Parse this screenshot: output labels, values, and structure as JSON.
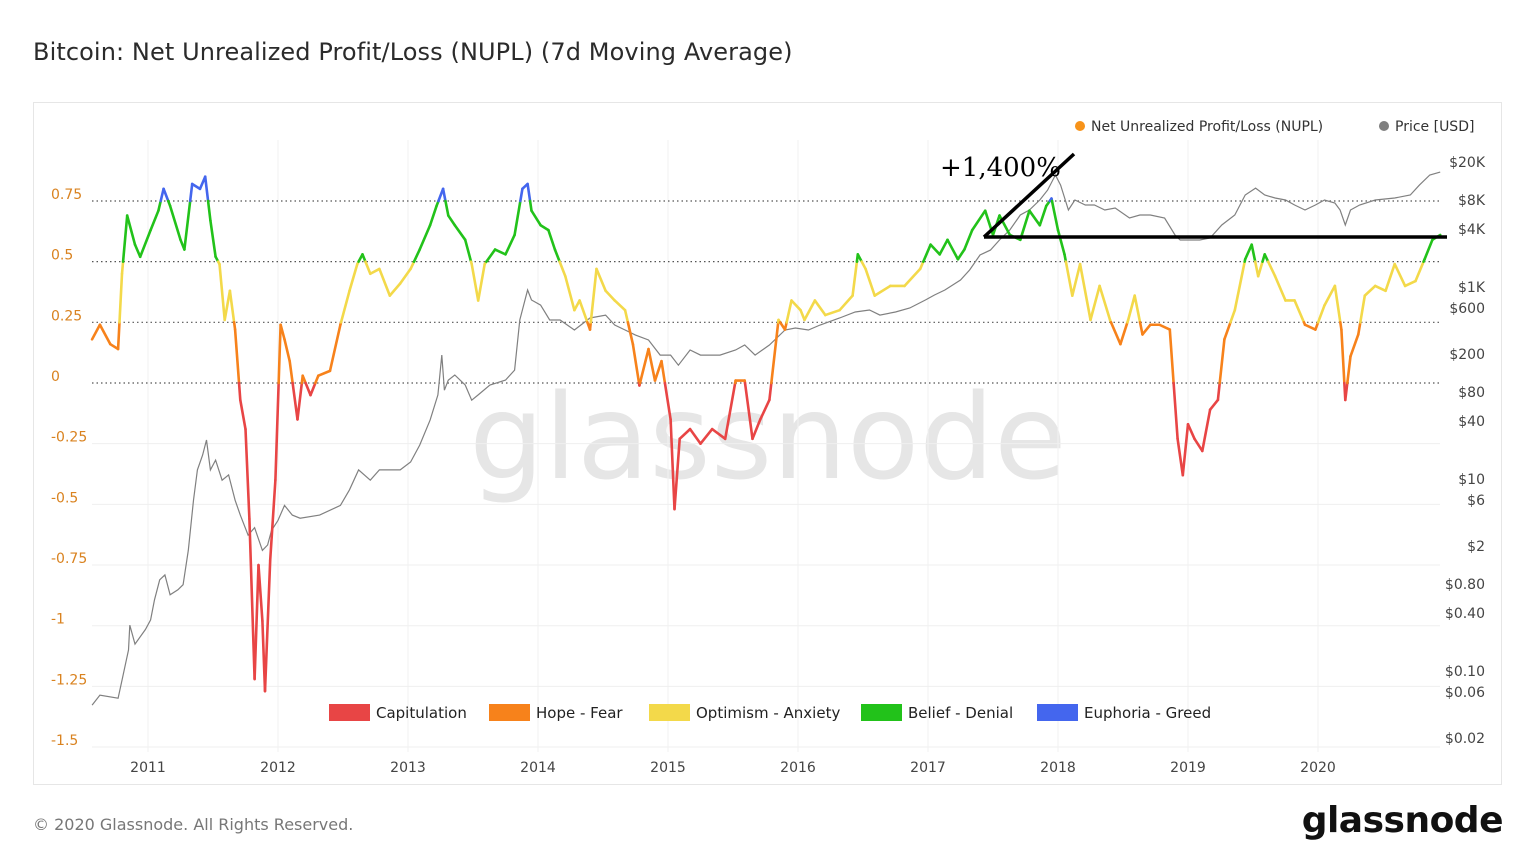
{
  "title": "Bitcoin: Net Unrealized Profit/Loss (NUPL) (7d Moving Average)",
  "footer": "© 2020 Glassnode. All Rights Reserved.",
  "logo_text": "glassnode",
  "watermark": "glassnode",
  "chart_data": {
    "type": "line",
    "title": "Bitcoin: Net Unrealized Profit/Loss (NUPL) (7d Moving Average)",
    "xlabel": "",
    "x_ticks": [
      "2011",
      "2012",
      "2013",
      "2014",
      "2015",
      "2016",
      "2017",
      "2018",
      "2019",
      "2020"
    ],
    "left_axis": {
      "ylim": [
        -1.5,
        0.85
      ],
      "ticks": [
        "0.75",
        "0.5",
        "0.25",
        "0",
        "-0.25",
        "-0.5",
        "-0.75",
        "-1",
        "-1.25",
        "-1.5"
      ],
      "color": "#d9821f"
    },
    "right_axis": {
      "scale": "log",
      "ticks": [
        "$20K",
        "$8K",
        "$4K",
        "$1K",
        "$600",
        "$200",
        "$80",
        "$40",
        "$10",
        "$6",
        "$2",
        "$0.80",
        "$0.40",
        "$0.10",
        "$0.06",
        "$0.02"
      ],
      "tick_values": [
        20000,
        8000,
        4000,
        1000,
        600,
        200,
        80,
        40,
        10,
        6,
        2,
        0.8,
        0.4,
        0.1,
        0.06,
        0.02
      ]
    },
    "dotted_gridlines_at": [
      0.75,
      0.5,
      0.25,
      0
    ],
    "legend_top": [
      {
        "label": "Net Unrealized Profit/Loss (NUPL)",
        "color": "#f7931a"
      },
      {
        "label": "Price [USD]",
        "color": "#808080"
      }
    ],
    "zones": [
      {
        "label": "Capitulation",
        "color": "#e84545",
        "range": [
          -10,
          0
        ]
      },
      {
        "label": "Hope - Fear",
        "color": "#f7821b",
        "range": [
          0,
          0.25
        ]
      },
      {
        "label": "Optimism - Anxiety",
        "color": "#f3d94a",
        "range": [
          0.25,
          0.5
        ]
      },
      {
        "label": "Belief - Denial",
        "color": "#22c21a",
        "range": [
          0.5,
          0.75
        ]
      },
      {
        "label": "Euphoria - Greed",
        "color": "#4466ee",
        "range": [
          0.75,
          10
        ]
      }
    ],
    "series": [
      {
        "name": "Net Unrealized Profit/Loss (NUPL)",
        "axis": "left",
        "x": [
          2010.57,
          2010.63,
          2010.71,
          2010.77,
          2010.8,
          2010.84,
          2010.9,
          2010.94,
          2011.02,
          2011.08,
          2011.12,
          2011.17,
          2011.25,
          2011.28,
          2011.34,
          2011.4,
          2011.44,
          2011.48,
          2011.52,
          2011.55,
          2011.59,
          2011.63,
          2011.67,
          2011.71,
          2011.75,
          2011.78,
          2011.82,
          2011.85,
          2011.88,
          2011.9,
          2011.94,
          2011.98,
          2012.02,
          2012.05,
          2012.09,
          2012.15,
          2012.19,
          2012.25,
          2012.31,
          2012.4,
          2012.48,
          2012.55,
          2012.61,
          2012.65,
          2012.71,
          2012.78,
          2012.86,
          2012.94,
          2013.02,
          2013.09,
          2013.17,
          2013.22,
          2013.27,
          2013.31,
          2013.36,
          2013.44,
          2013.49,
          2013.54,
          2013.59,
          2013.67,
          2013.75,
          2013.82,
          2013.88,
          2013.92,
          2013.95,
          2014.02,
          2014.08,
          2014.13,
          2014.21,
          2014.28,
          2014.32,
          2014.4,
          2014.45,
          2014.52,
          2014.59,
          2014.67,
          2014.73,
          2014.78,
          2014.85,
          2014.9,
          2014.95,
          2015.02,
          2015.05,
          2015.09,
          2015.17,
          2015.25,
          2015.34,
          2015.44,
          2015.52,
          2015.59,
          2015.65,
          2015.71,
          2015.78,
          2015.85,
          2015.9,
          2015.95,
          2016.02,
          2016.05,
          2016.13,
          2016.21,
          2016.32,
          2016.42,
          2016.46,
          2016.52,
          2016.59,
          2016.71,
          2016.82,
          2016.94,
          2017.02,
          2017.09,
          2017.15,
          2017.23,
          2017.28,
          2017.34,
          2017.44,
          2017.5,
          2017.55,
          2017.63,
          2017.71,
          2017.78,
          2017.86,
          2017.91,
          2017.95,
          2018.0,
          2018.05,
          2018.11,
          2018.17,
          2018.25,
          2018.32,
          2018.4,
          2018.48,
          2018.54,
          2018.59,
          2018.65,
          2018.71,
          2018.78,
          2018.86,
          2018.92,
          2018.96,
          2019.0,
          2019.05,
          2019.11,
          2019.17,
          2019.23,
          2019.28,
          2019.36,
          2019.44,
          2019.49,
          2019.54,
          2019.59,
          2019.67,
          2019.75,
          2019.82,
          2019.9,
          2019.98,
          2020.05,
          2020.13,
          2020.18,
          2020.21,
          2020.25,
          2020.31,
          2020.36,
          2020.44,
          2020.52,
          2020.59,
          2020.67,
          2020.75,
          2020.82,
          2020.88,
          2020.94
        ],
        "y": [
          0.18,
          0.24,
          0.16,
          0.14,
          0.45,
          0.69,
          0.57,
          0.52,
          0.63,
          0.71,
          0.8,
          0.73,
          0.59,
          0.55,
          0.82,
          0.8,
          0.85,
          0.67,
          0.52,
          0.49,
          0.26,
          0.38,
          0.22,
          -0.07,
          -0.19,
          -0.56,
          -1.22,
          -0.75,
          -0.98,
          -1.27,
          -0.73,
          -0.4,
          0.24,
          0.18,
          0.09,
          -0.15,
          0.03,
          -0.05,
          0.03,
          0.05,
          0.24,
          0.38,
          0.49,
          0.53,
          0.45,
          0.47,
          0.36,
          0.41,
          0.47,
          0.55,
          0.65,
          0.73,
          0.8,
          0.69,
          0.65,
          0.59,
          0.49,
          0.34,
          0.49,
          0.55,
          0.53,
          0.61,
          0.8,
          0.82,
          0.71,
          0.65,
          0.63,
          0.55,
          0.44,
          0.3,
          0.34,
          0.22,
          0.47,
          0.38,
          0.34,
          0.3,
          0.16,
          -0.01,
          0.14,
          0.01,
          0.09,
          -0.15,
          -0.52,
          -0.23,
          -0.19,
          -0.25,
          -0.19,
          -0.23,
          0.01,
          0.01,
          -0.23,
          -0.15,
          -0.07,
          0.26,
          0.22,
          0.34,
          0.3,
          0.26,
          0.34,
          0.28,
          0.3,
          0.36,
          0.53,
          0.47,
          0.36,
          0.4,
          0.4,
          0.47,
          0.57,
          0.53,
          0.59,
          0.51,
          0.55,
          0.63,
          0.71,
          0.61,
          0.69,
          0.61,
          0.59,
          0.71,
          0.65,
          0.73,
          0.76,
          0.63,
          0.53,
          0.36,
          0.49,
          0.26,
          0.4,
          0.26,
          0.16,
          0.26,
          0.36,
          0.2,
          0.24,
          0.24,
          0.22,
          -0.23,
          -0.38,
          -0.17,
          -0.23,
          -0.28,
          -0.11,
          -0.07,
          0.18,
          0.3,
          0.51,
          0.57,
          0.44,
          0.53,
          0.44,
          0.34,
          0.34,
          0.24,
          0.22,
          0.32,
          0.4,
          0.22,
          -0.07,
          0.11,
          0.2,
          0.36,
          0.4,
          0.38,
          0.49,
          0.4,
          0.42,
          0.51,
          0.59,
          0.61
        ]
      },
      {
        "name": "Price [USD]",
        "axis": "right",
        "color": "#808080",
        "x": [
          2010.57,
          2010.63,
          2010.77,
          2010.8,
          2010.85,
          2010.86,
          2010.9,
          2010.98,
          2011.02,
          2011.05,
          2011.09,
          2011.13,
          2011.17,
          2011.23,
          2011.27,
          2011.31,
          2011.35,
          2011.38,
          2011.42,
          2011.45,
          2011.48,
          2011.52,
          2011.57,
          2011.62,
          2011.67,
          2011.71,
          2011.77,
          2011.82,
          2011.88,
          2011.92,
          2011.95,
          2012.0,
          2012.05,
          2012.11,
          2012.17,
          2012.32,
          2012.48,
          2012.55,
          2012.62,
          2012.71,
          2012.78,
          2012.94,
          2013.02,
          2013.09,
          2013.17,
          2013.23,
          2013.26,
          2013.28,
          2013.31,
          2013.36,
          2013.44,
          2013.49,
          2013.54,
          2013.63,
          2013.75,
          2013.82,
          2013.86,
          2013.92,
          2013.95,
          2014.02,
          2014.09,
          2014.17,
          2014.28,
          2014.4,
          2014.52,
          2014.59,
          2014.67,
          2014.75,
          2014.85,
          2014.94,
          2015.02,
          2015.08,
          2015.17,
          2015.25,
          2015.4,
          2015.52,
          2015.59,
          2015.67,
          2015.78,
          2015.9,
          2015.98,
          2016.08,
          2016.17,
          2016.32,
          2016.44,
          2016.55,
          2016.63,
          2016.75,
          2016.86,
          2016.98,
          2017.05,
          2017.13,
          2017.25,
          2017.32,
          2017.4,
          2017.48,
          2017.55,
          2017.63,
          2017.71,
          2017.78,
          2017.86,
          2017.92,
          2017.98,
          2018.02,
          2018.08,
          2018.13,
          2018.21,
          2018.28,
          2018.36,
          2018.44,
          2018.55,
          2018.63,
          2018.71,
          2018.82,
          2018.9,
          2018.94,
          2019.02,
          2019.09,
          2019.17,
          2019.26,
          2019.36,
          2019.44,
          2019.52,
          2019.59,
          2019.67,
          2019.75,
          2019.82,
          2019.9,
          2019.98,
          2020.05,
          2020.13,
          2020.17,
          2020.21,
          2020.25,
          2020.32,
          2020.44,
          2020.59,
          2020.71,
          2020.78,
          2020.86,
          2020.94
        ],
        "y": [
          0.044,
          0.056,
          0.052,
          0.08,
          0.165,
          0.3,
          0.19,
          0.27,
          0.34,
          0.55,
          0.89,
          1.0,
          0.62,
          0.7,
          0.79,
          1.8,
          6.0,
          12.4,
          17.7,
          25.4,
          12.4,
          15.7,
          9.7,
          11,
          6.0,
          4.2,
          2.6,
          3.1,
          1.8,
          2.05,
          2.9,
          3.7,
          5.3,
          4.2,
          3.9,
          4.2,
          5.3,
          7.7,
          12.4,
          9.7,
          12.4,
          12.4,
          15,
          22.5,
          41,
          75,
          195,
          84,
          107,
          121,
          95,
          66,
          75,
          95,
          107,
          136,
          452,
          929,
          730,
          647,
          452,
          452,
          356,
          474,
          509,
          401,
          356,
          315,
          280,
          195,
          195,
          153,
          220,
          195,
          195,
          220,
          248,
          195,
          248,
          356,
          373,
          356,
          401,
          474,
          548,
          574,
          509,
          548,
          603,
          730,
          824,
          929,
          1180,
          1500,
          2150,
          2420,
          3080,
          3920,
          5610,
          6320,
          8040,
          10200,
          14650,
          11500,
          6320,
          8040,
          7130,
          7130,
          6320,
          6640,
          5220,
          5610,
          5610,
          5220,
          3470,
          3080,
          3080,
          3080,
          3230,
          4410,
          5610,
          9060,
          10700,
          9060,
          8430,
          8040,
          7130,
          6320,
          7130,
          8040,
          7480,
          6320,
          4410,
          6320,
          7130,
          8040,
          8430,
          9060,
          11500,
          14650,
          15700
        ]
      }
    ],
    "annotation": {
      "text": "+1,400%",
      "color": "#000000"
    }
  }
}
